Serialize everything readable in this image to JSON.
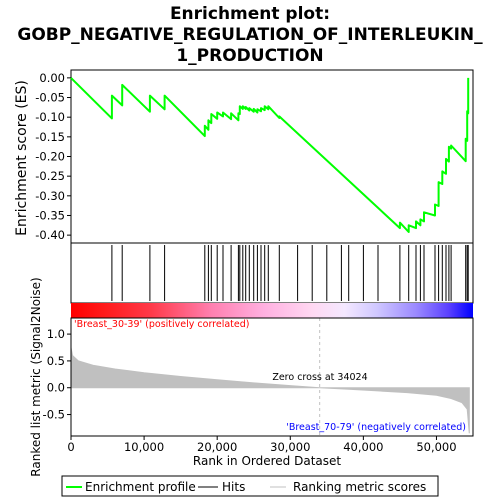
{
  "title_line1": "Enrichment plot:",
  "title_line2": "GOBP_NEGATIVE_REGULATION_OF_INTERLEUKIN_",
  "title_line3": "1_PRODUCTION",
  "colors": {
    "es_line": "#00ff00",
    "hits": "#000000",
    "metric_fill": "#c0c0c0",
    "zero_cross_line": "#c0c0c0",
    "pos_label": "#ff0000",
    "neg_label": "#0000ff",
    "heat_red": "#ff0000",
    "heat_blue": "#0000ff"
  },
  "chart_data": [
    {
      "type": "line",
      "name": "enrichment-profile",
      "ylabel": "Enrichment score (ES)",
      "xlim": [
        0,
        55000
      ],
      "ylim": [
        -0.42,
        0.02
      ],
      "yticks": [
        0.0,
        -0.05,
        -0.1,
        -0.15,
        -0.2,
        -0.25,
        -0.3,
        -0.35,
        -0.4
      ],
      "ytick_labels": [
        "0.00",
        "-0.05",
        "-0.10",
        "-0.15",
        "-0.20",
        "-0.25",
        "-0.30",
        "-0.35",
        "-0.40"
      ],
      "x": [
        0,
        5600,
        5600,
        7000,
        7000,
        10800,
        10800,
        12800,
        12800,
        18300,
        18300,
        18800,
        18800,
        19200,
        19200,
        20000,
        20000,
        20800,
        20800,
        21900,
        21900,
        22900,
        22900,
        23100,
        23100,
        23500,
        23500,
        23900,
        23900,
        24400,
        24400,
        25000,
        25000,
        25500,
        25500,
        26000,
        26000,
        26500,
        26500,
        27000,
        27000,
        28500,
        28500,
        45000,
        45000,
        46200,
        46200,
        47200,
        47200,
        47800,
        47800,
        48300,
        48300,
        49800,
        49800,
        50300,
        50300,
        50800,
        50800,
        51300,
        51300,
        51700,
        51700,
        52000,
        52000,
        54000,
        54000,
        54200,
        54200,
        54350,
        54350
      ],
      "y": [
        0.0,
        -0.103,
        -0.045,
        -0.07,
        -0.018,
        -0.086,
        -0.045,
        -0.08,
        -0.045,
        -0.148,
        -0.122,
        -0.132,
        -0.108,
        -0.115,
        -0.092,
        -0.104,
        -0.088,
        -0.098,
        -0.088,
        -0.105,
        -0.09,
        -0.108,
        -0.09,
        -0.092,
        -0.072,
        -0.079,
        -0.072,
        -0.079,
        -0.074,
        -0.083,
        -0.077,
        -0.086,
        -0.079,
        -0.088,
        -0.08,
        -0.085,
        -0.077,
        -0.082,
        -0.072,
        -0.08,
        -0.072,
        -0.102,
        -0.098,
        -0.382,
        -0.368,
        -0.392,
        -0.375,
        -0.382,
        -0.365,
        -0.375,
        -0.36,
        -0.365,
        -0.342,
        -0.35,
        -0.322,
        -0.326,
        -0.265,
        -0.27,
        -0.238,
        -0.244,
        -0.206,
        -0.213,
        -0.175,
        -0.18,
        -0.172,
        -0.212,
        -0.155,
        -0.16,
        -0.085,
        -0.09,
        0.0
      ]
    },
    {
      "type": "scatter",
      "name": "hits",
      "xlim": [
        0,
        55000
      ],
      "x": [
        5600,
        7000,
        10800,
        12800,
        18300,
        18800,
        19200,
        20000,
        20800,
        21900,
        22900,
        23100,
        23500,
        23900,
        24400,
        25000,
        25500,
        26000,
        26500,
        27000,
        28500,
        31000,
        33000,
        35000,
        37000,
        38000,
        40000,
        42000,
        45000,
        46200,
        47200,
        47800,
        48300,
        49800,
        50300,
        50800,
        51300,
        51700,
        52000,
        54000,
        54200,
        54350
      ]
    },
    {
      "type": "area",
      "name": "ranked-list-metric",
      "ylabel": "Ranked list metric (Signal2Noise)",
      "xlabel": "Rank in Ordered Dataset",
      "xlim": [
        0,
        55000
      ],
      "ylim": [
        -0.9,
        1.3
      ],
      "yticks": [
        1.0,
        0.5,
        0.0,
        -0.5
      ],
      "ytick_labels": [
        "1.0",
        "0.5",
        "0.0",
        "-0.5"
      ],
      "xticks": [
        0,
        10000,
        20000,
        30000,
        40000,
        50000
      ],
      "xtick_labels": [
        "0",
        "10,000",
        "20,000",
        "30,000",
        "40,000",
        "50,000"
      ],
      "x": [
        0,
        200,
        1000,
        3000,
        6000,
        10000,
        15000,
        20000,
        25000,
        30000,
        34024,
        38000,
        42000,
        46000,
        50000,
        52000,
        53500,
        54200,
        54500
      ],
      "y": [
        0.75,
        0.6,
        0.5,
        0.42,
        0.35,
        0.28,
        0.21,
        0.15,
        0.09,
        0.04,
        0.0,
        -0.03,
        -0.06,
        -0.09,
        -0.14,
        -0.2,
        -0.28,
        -0.4,
        -0.85
      ],
      "zero_cross": 34024,
      "zero_cross_label": "Zero cross at 34024",
      "pos_label": "'Breast_30-39' (positively correlated)",
      "neg_label": "'Breast_70-79' (negatively correlated)"
    }
  ],
  "legend": {
    "items": [
      {
        "label": "Enrichment profile",
        "color": "#00ff00"
      },
      {
        "label": "Hits",
        "color": "#000000"
      },
      {
        "label": "Ranking metric scores",
        "color": "#c0c0c0"
      }
    ]
  }
}
